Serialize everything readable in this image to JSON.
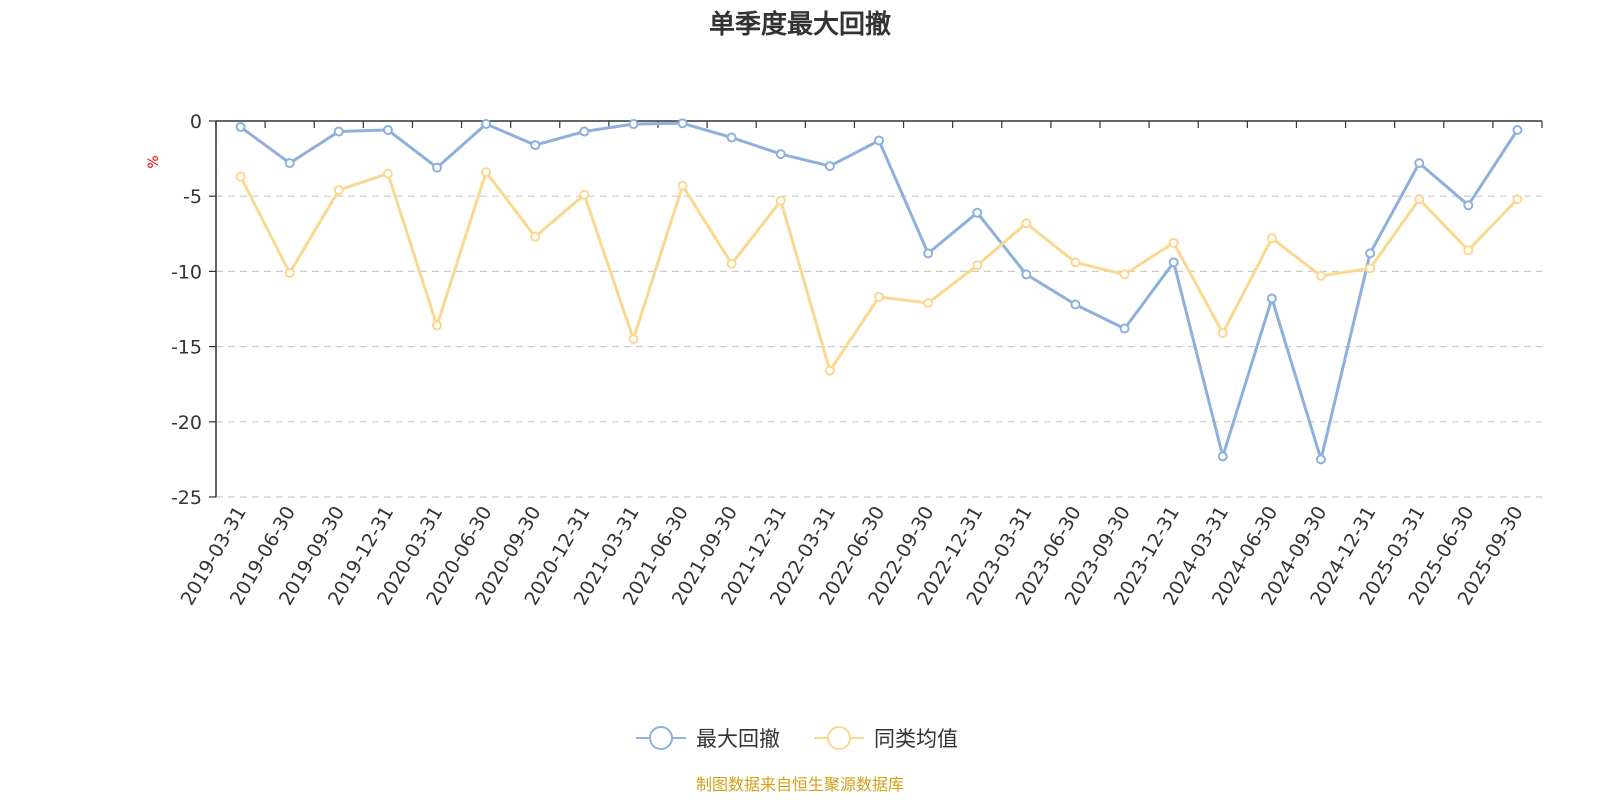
{
  "chart_data": {
    "type": "line",
    "title": "单季度最大回撤",
    "ylabel": "%",
    "ylim": [
      -25,
      0
    ],
    "yticks": [
      0,
      -5,
      -10,
      -15,
      -20,
      -25
    ],
    "grid": true,
    "legend_position": "bottom-center",
    "categories": [
      "2019-03-31",
      "2019-06-30",
      "2019-09-30",
      "2019-12-31",
      "2020-03-31",
      "2020-06-30",
      "2020-09-30",
      "2020-12-31",
      "2021-03-31",
      "2021-06-30",
      "2021-09-30",
      "2021-12-31",
      "2022-03-31",
      "2022-06-30",
      "2022-09-30",
      "2022-12-31",
      "2023-03-31",
      "2023-06-30",
      "2023-09-30",
      "2023-12-31",
      "2024-03-31",
      "2024-06-30",
      "2024-09-30",
      "2024-12-31",
      "2025-03-31",
      "2025-06-30",
      "2025-09-30"
    ],
    "series": [
      {
        "name": "最大回撤",
        "color": "#8eb0dc",
        "values": [
          -0.4,
          -2.8,
          -0.7,
          -0.6,
          -3.1,
          -0.2,
          -1.6,
          -0.7,
          -0.2,
          -0.15,
          -1.1,
          -2.2,
          -3.0,
          -1.3,
          -8.8,
          -6.1,
          -10.2,
          -12.2,
          -13.8,
          -9.4,
          -22.3,
          -11.8,
          -22.5,
          -8.8,
          -2.8,
          -5.6,
          -0.6
        ]
      },
      {
        "name": "同类均值",
        "color": "#fbd88f",
        "values": [
          -3.7,
          -10.1,
          -4.6,
          -3.5,
          -13.6,
          -3.4,
          -7.7,
          -4.9,
          -14.5,
          -4.3,
          -9.5,
          -5.3,
          -16.6,
          -11.7,
          -12.1,
          -9.6,
          -6.8,
          -9.4,
          -10.2,
          -8.1,
          -14.1,
          -7.8,
          -10.3,
          -9.8,
          -5.2,
          -8.6,
          -5.2
        ]
      }
    ]
  },
  "footer": {
    "source": "制图数据来自恒生聚源数据库"
  }
}
